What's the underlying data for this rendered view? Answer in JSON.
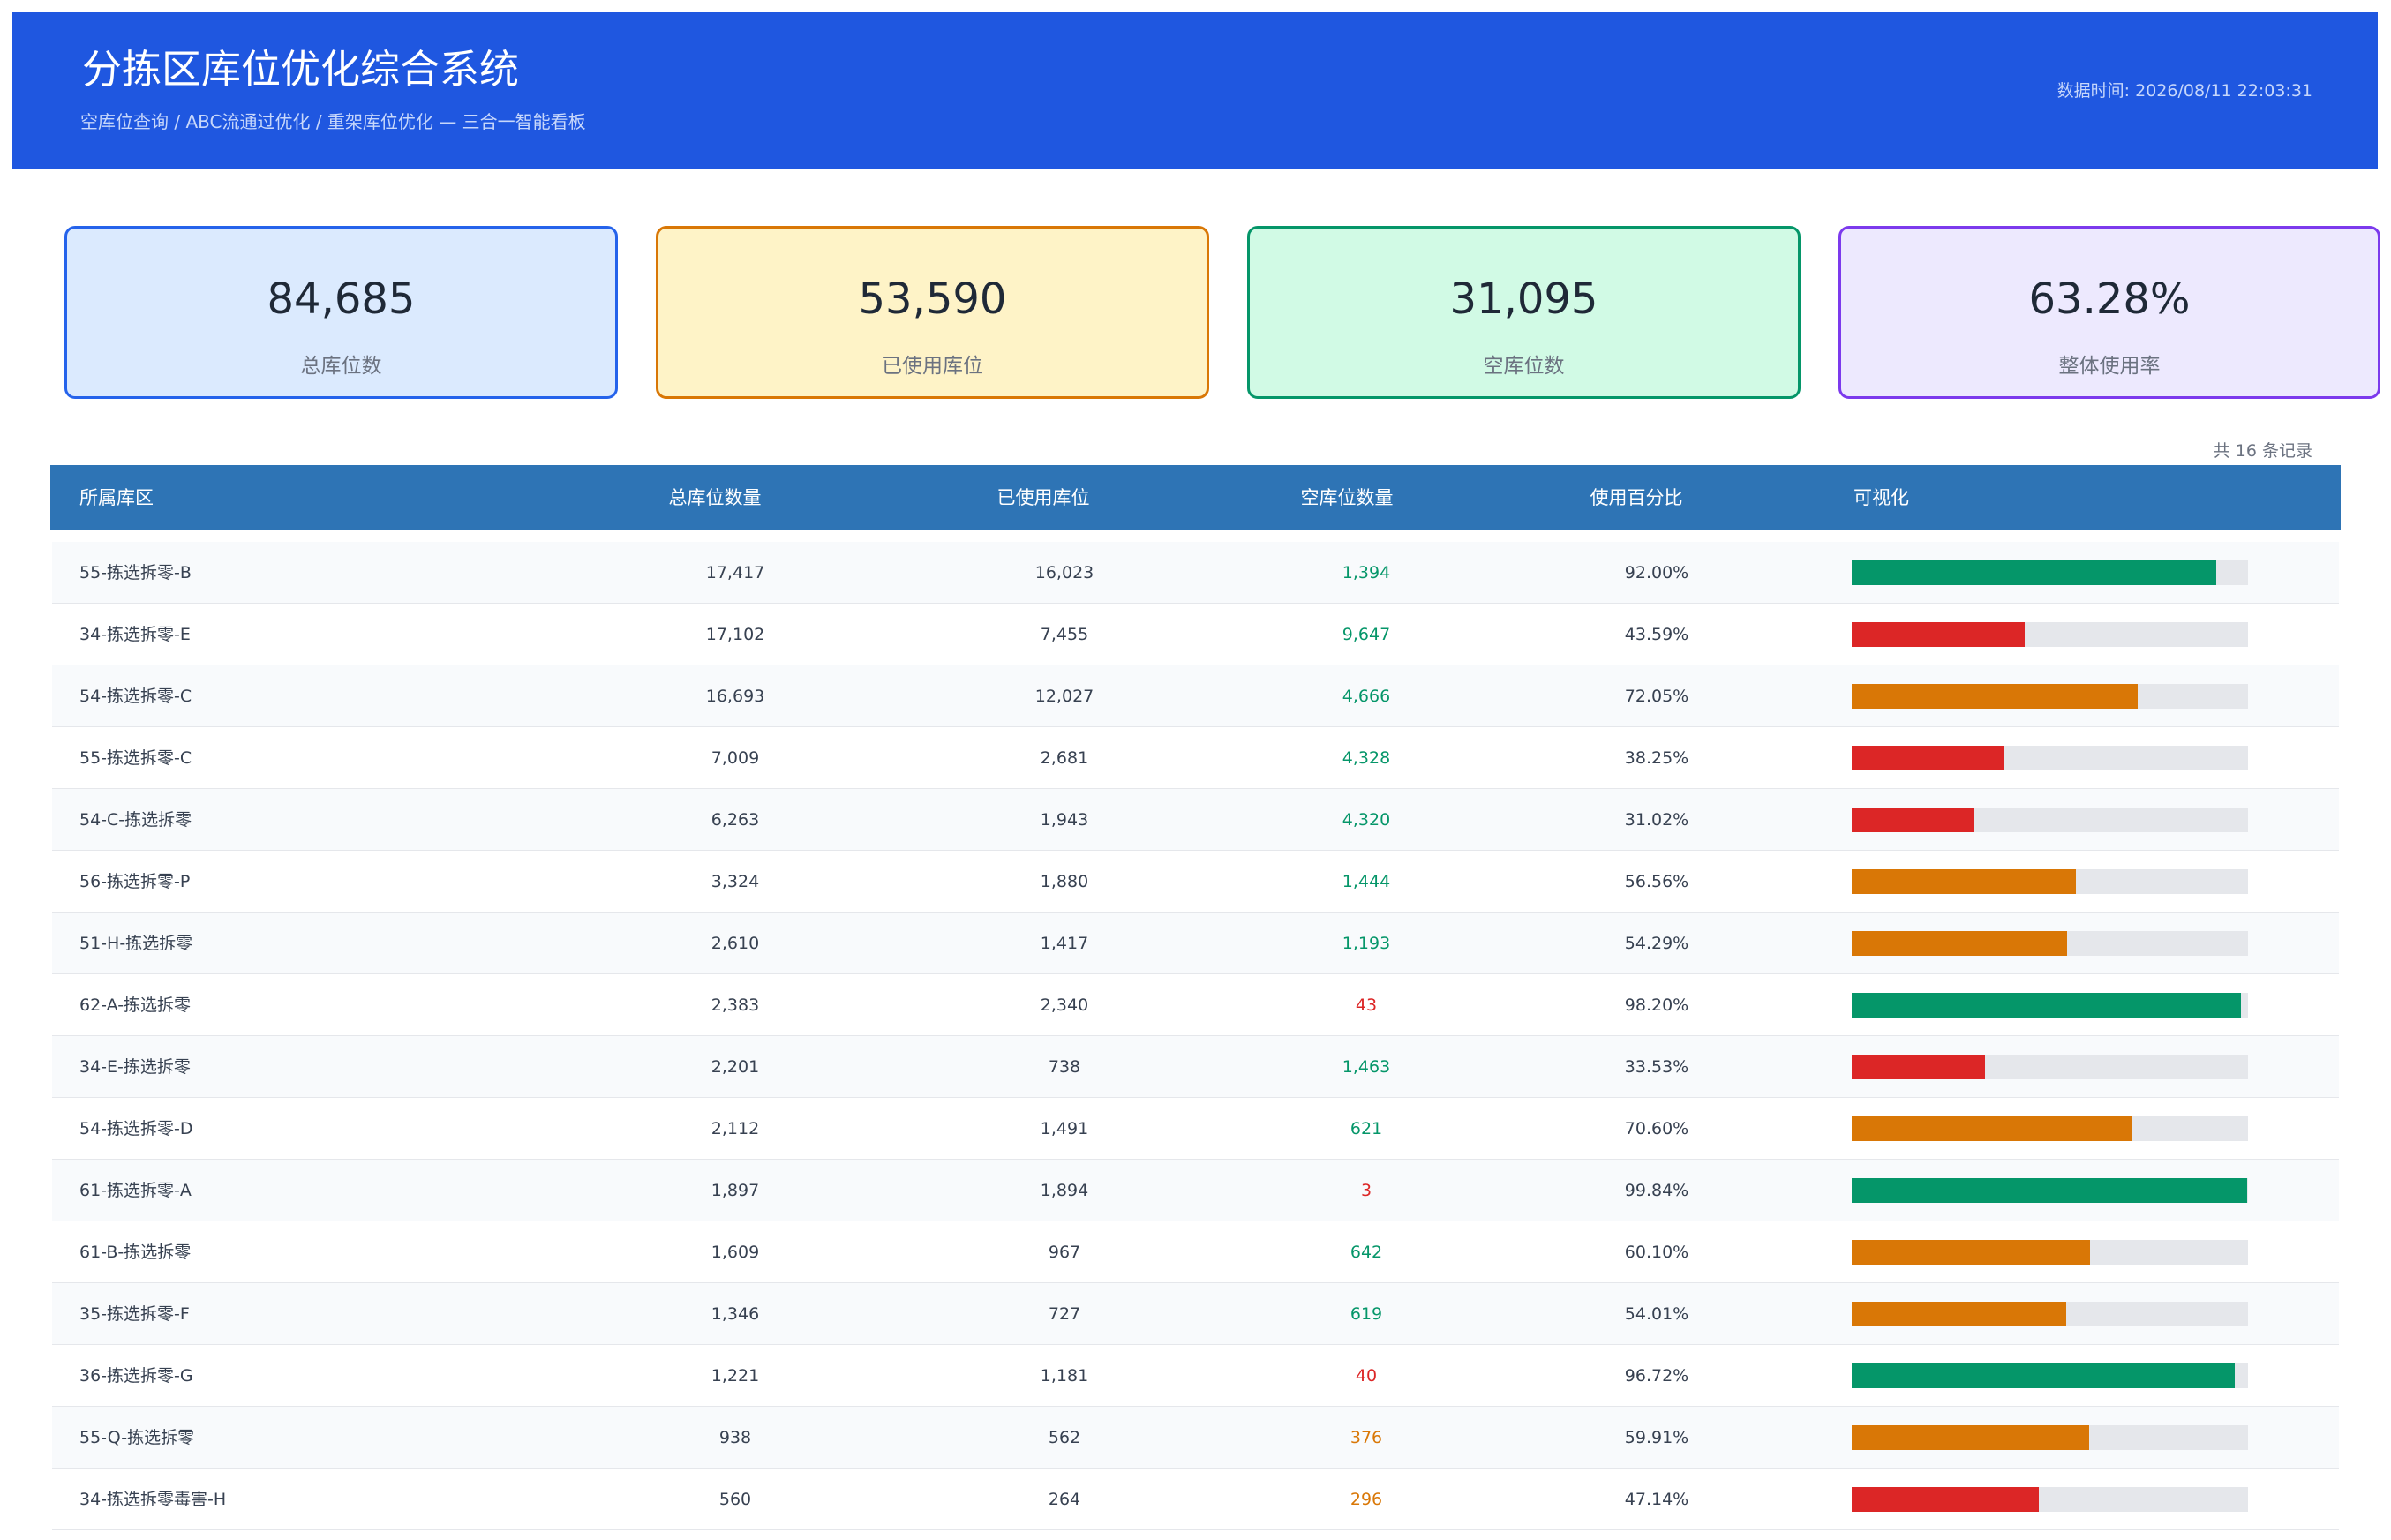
{
  "header": {
    "title": "分拣区库位优化综合系统",
    "subtitle": "空库位查询 / ABC流通过优化 / 重架库位优化 — 三合一智能看板",
    "timestamp": "数据时间: 2026/08/11 22:03:31"
  },
  "cards": [
    {
      "value": "84,685",
      "label": "总库位数",
      "color": "#2563eb",
      "bg": "#dbeafe"
    },
    {
      "value": "53,590",
      "label": "已使用库位",
      "color": "#d97706",
      "bg": "#fef3c7"
    },
    {
      "value": "31,095",
      "label": "空库位数",
      "color": "#059669",
      "bg": "#d1fae5"
    },
    {
      "value": "63.28%",
      "label": "整体使用率",
      "color": "#7c3aed",
      "bg": "#ede9fe"
    }
  ],
  "record_count": "共 16 条记录",
  "table": {
    "headers": [
      "所属库区",
      "总库位数量",
      "已使用库位",
      "空库位数量",
      "使用百分比",
      "可视化"
    ],
    "rows": [
      {
        "zone": "55-拣选拆零-B",
        "total": "17,417",
        "used": "16,023",
        "empty": "1,394",
        "usage": {
          "value": 92.0,
          "label": "92.00%"
        }
      },
      {
        "zone": "34-拣选拆零-E",
        "total": "17,102",
        "used": "7,455",
        "empty": "9,647",
        "usage": {
          "value": 43.59,
          "label": "43.59%"
        }
      },
      {
        "zone": "54-拣选拆零-C",
        "total": "16,693",
        "used": "12,027",
        "empty": "4,666",
        "usage": {
          "value": 72.05,
          "label": "72.05%"
        }
      },
      {
        "zone": "55-拣选拆零-C",
        "total": "7,009",
        "used": "2,681",
        "empty": "4,328",
        "usage": {
          "value": 38.25,
          "label": "38.25%"
        }
      },
      {
        "zone": "54-C-拣选拆零",
        "total": "6,263",
        "used": "1,943",
        "empty": "4,320",
        "usage": {
          "value": 31.02,
          "label": "31.02%"
        }
      },
      {
        "zone": "56-拣选拆零-P",
        "total": "3,324",
        "used": "1,880",
        "empty": "1,444",
        "usage": {
          "value": 56.56,
          "label": "56.56%"
        }
      },
      {
        "zone": "51-H-拣选拆零",
        "total": "2,610",
        "used": "1,417",
        "empty": "1,193",
        "usage": {
          "value": 54.29,
          "label": "54.29%"
        }
      },
      {
        "zone": "62-A-拣选拆零",
        "total": "2,383",
        "used": "2,340",
        "empty": "43",
        "usage": {
          "value": 98.2,
          "label": "98.20%"
        }
      },
      {
        "zone": "34-E-拣选拆零",
        "total": "2,201",
        "used": "738",
        "empty": "1,463",
        "usage": {
          "value": 33.53,
          "label": "33.53%"
        }
      },
      {
        "zone": "54-拣选拆零-D",
        "total": "2,112",
        "used": "1,491",
        "empty": "621",
        "usage": {
          "value": 70.6,
          "label": "70.60%"
        }
      },
      {
        "zone": "61-拣选拆零-A",
        "total": "1,897",
        "used": "1,894",
        "empty": "3",
        "usage": {
          "value": 99.84,
          "label": "99.84%"
        }
      },
      {
        "zone": "61-B-拣选拆零",
        "total": "1,609",
        "used": "967",
        "empty": "642",
        "usage": {
          "value": 60.1,
          "label": "60.10%"
        }
      },
      {
        "zone": "35-拣选拆零-F",
        "total": "1,346",
        "used": "727",
        "empty": "619",
        "usage": {
          "value": 54.01,
          "label": "54.01%"
        }
      },
      {
        "zone": "36-拣选拆零-G",
        "total": "1,221",
        "used": "1,181",
        "empty": "40",
        "usage": {
          "value": 96.72,
          "label": "96.72%"
        }
      },
      {
        "zone": "55-Q-拣选拆零",
        "total": "938",
        "used": "562",
        "empty": "376",
        "usage": {
          "value": 59.91,
          "label": "59.91%"
        }
      },
      {
        "zone": "34-拣选拆零毒害-H",
        "total": "560",
        "used": "264",
        "empty": "296",
        "usage": {
          "value": 47.14,
          "label": "47.14%"
        }
      }
    ]
  }
}
